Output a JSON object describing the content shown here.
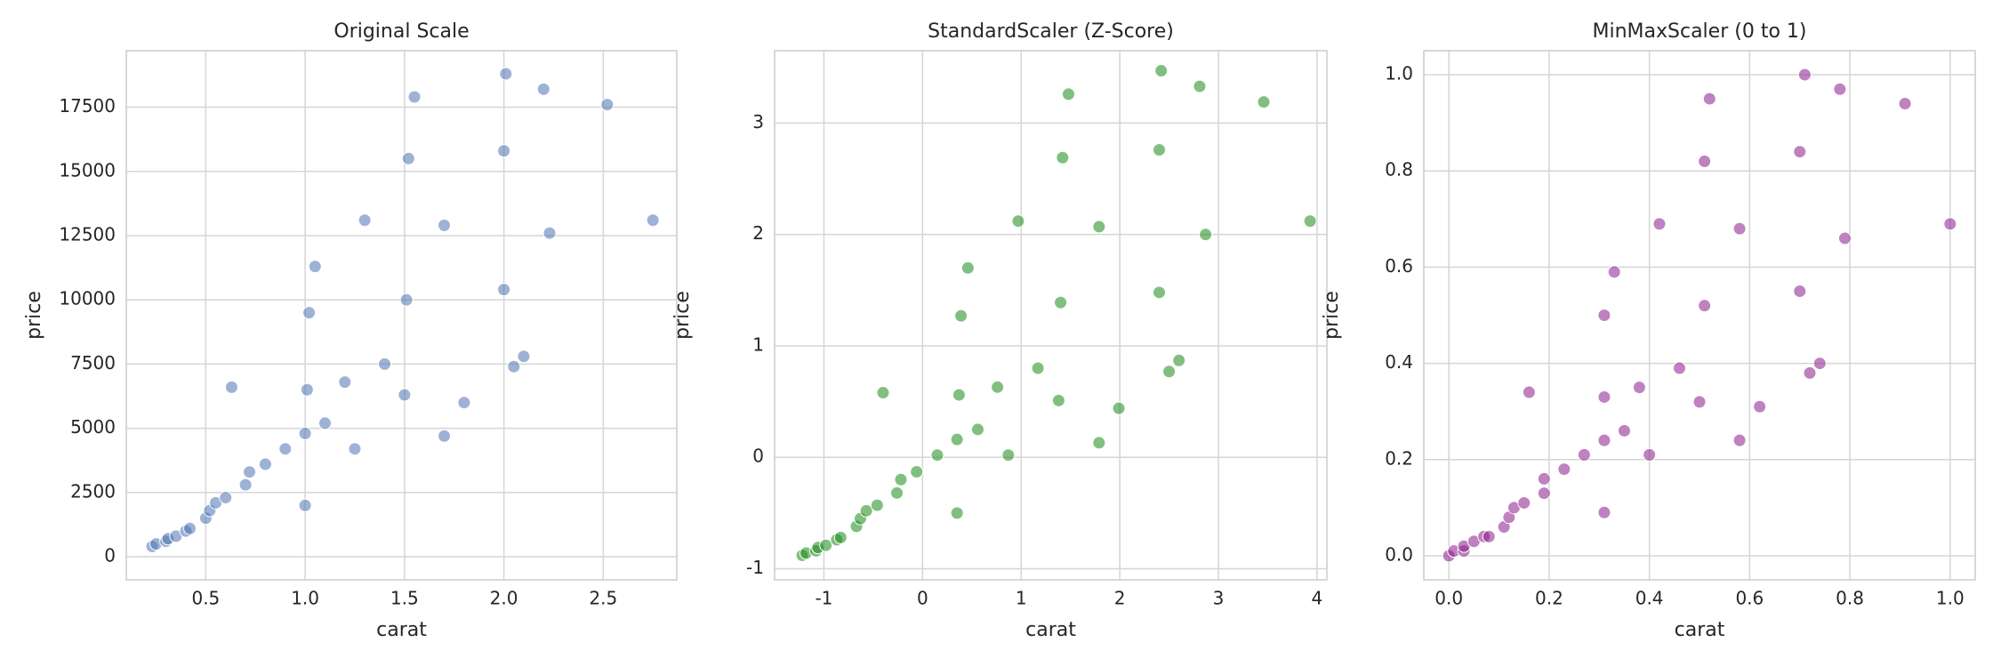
{
  "chart_data": [
    {
      "type": "scatter",
      "title": "Original Scale",
      "x_label": "carat",
      "y_label": "price",
      "color": "#4c72b0",
      "x": [
        0.23,
        0.25,
        0.3,
        0.31,
        0.35,
        0.4,
        0.42,
        0.5,
        0.52,
        0.55,
        0.6,
        0.63,
        0.7,
        0.72,
        0.8,
        0.9,
        1.0,
        1.0,
        1.01,
        1.02,
        1.05,
        1.1,
        1.2,
        1.25,
        1.3,
        1.4,
        1.5,
        1.51,
        1.52,
        1.55,
        1.7,
        1.7,
        1.8,
        2.0,
        2.0,
        2.01,
        2.05,
        2.1,
        2.2,
        2.23,
        2.52,
        2.75
      ],
      "values": [
        400,
        500,
        600,
        700,
        800,
        1000,
        1100,
        1500,
        1800,
        2100,
        2300,
        6600,
        2800,
        3300,
        3600,
        4200,
        2000,
        4800,
        6500,
        9500,
        11300,
        5200,
        6800,
        4200,
        13100,
        7500,
        6300,
        10000,
        15500,
        17900,
        4700,
        12900,
        6000,
        10400,
        15800,
        18800,
        7400,
        7800,
        18200,
        12600,
        17600,
        13100
      ],
      "xlim": [
        0.1,
        2.87
      ],
      "xticks": [
        0.5,
        {
          "value": 1,
          "label": "1.0"
        },
        1.5,
        {
          "value": 2,
          "label": "2.0"
        },
        2.5
      ],
      "ylim": [
        -900,
        19700
      ],
      "yticks": [
        0,
        2500,
        5000,
        7500,
        10000,
        12500,
        15000,
        17500
      ],
      "grid": true
    },
    {
      "type": "scatter",
      "title": "StandardScaler (Z-Score)",
      "x_label": "carat",
      "y_label": "price",
      "color": "#1a8a1a",
      "x": [
        -1.22,
        -1.18,
        -1.08,
        -1.06,
        -0.98,
        -0.87,
        -0.83,
        -0.67,
        -0.63,
        -0.57,
        -0.46,
        -0.4,
        -0.26,
        -0.22,
        -0.06,
        0.15,
        0.35,
        0.35,
        0.37,
        0.39,
        0.46,
        0.56,
        0.76,
        0.87,
        0.97,
        1.17,
        1.38,
        1.4,
        1.42,
        1.48,
        1.79,
        1.79,
        1.99,
        2.4,
        2.4,
        2.42,
        2.5,
        2.6,
        2.81,
        2.87,
        3.46,
        3.93
      ],
      "values": [
        -0.88,
        -0.86,
        -0.84,
        -0.81,
        -0.79,
        -0.74,
        -0.72,
        -0.62,
        -0.55,
        -0.48,
        -0.43,
        0.58,
        -0.32,
        -0.2,
        -0.13,
        0.02,
        -0.5,
        0.16,
        0.56,
        1.27,
        1.7,
        0.25,
        0.63,
        0.02,
        2.12,
        0.8,
        0.51,
        1.39,
        2.69,
        3.26,
        0.13,
        2.07,
        0.44,
        1.48,
        2.76,
        3.47,
        0.77,
        0.87,
        3.33,
        2.0,
        3.19,
        2.12
      ],
      "xlim": [
        -1.5,
        4.1
      ],
      "xticks": [
        -1,
        0,
        1,
        2,
        3,
        4
      ],
      "ylim": [
        -1.1,
        3.65
      ],
      "yticks": [
        -1,
        0,
        1,
        2,
        3
      ],
      "grid": true
    },
    {
      "type": "scatter",
      "title": "MinMaxScaler (0 to 1)",
      "x_label": "carat",
      "y_label": "price",
      "color": "#8b1a8b",
      "x": [
        0,
        0.01,
        0.03,
        0.03,
        0.05,
        0.07,
        0.08,
        0.11,
        0.12,
        0.13,
        0.15,
        0.16,
        0.19,
        0.19,
        0.23,
        0.27,
        0.31,
        0.31,
        0.31,
        0.31,
        0.33,
        0.35,
        0.38,
        0.4,
        0.42,
        0.46,
        0.5,
        0.51,
        0.51,
        0.52,
        0.58,
        0.58,
        0.62,
        0.7,
        0.7,
        0.71,
        0.72,
        0.74,
        0.78,
        0.79,
        0.91,
        1.0
      ],
      "values": [
        0,
        0.01,
        0.01,
        0.02,
        0.03,
        0.04,
        0.04,
        0.06,
        0.08,
        0.1,
        0.11,
        0.34,
        0.13,
        0.16,
        0.18,
        0.21,
        0.09,
        0.24,
        0.33,
        0.5,
        0.59,
        0.26,
        0.35,
        0.21,
        0.69,
        0.39,
        0.32,
        0.52,
        0.82,
        0.95,
        0.24,
        0.68,
        0.31,
        0.55,
        0.84,
        1.0,
        0.38,
        0.4,
        0.97,
        0.66,
        0.94,
        0.69
      ],
      "xlim": [
        -0.05,
        1.05
      ],
      "xticks": [
        {
          "value": 0,
          "label": "0.0"
        },
        0.2,
        0.4,
        0.6,
        0.8,
        {
          "value": 1,
          "label": "1.0"
        }
      ],
      "ylim": [
        -0.05,
        1.05
      ],
      "yticks": [
        {
          "value": 0,
          "label": "0.0"
        },
        0.2,
        0.4,
        0.6,
        0.8,
        {
          "value": 1,
          "label": "1.0"
        }
      ],
      "grid": true
    }
  ]
}
